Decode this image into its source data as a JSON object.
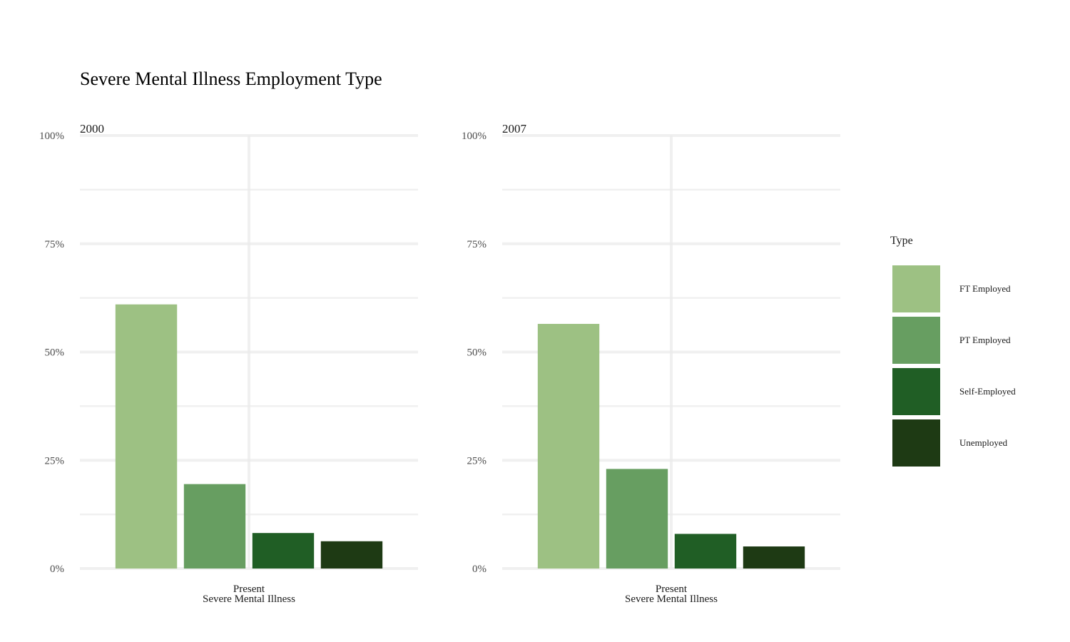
{
  "chart_data": {
    "type": "bar",
    "title": "Severe Mental Illness Employment Type",
    "xlabel": "Severe Mental Illness",
    "ylabel": "",
    "ylim": [
      0,
      1
    ],
    "y_ticks": [
      0,
      0.25,
      0.5,
      0.75,
      1.0
    ],
    "y_tick_labels": [
      "0%",
      "25%",
      "50%",
      "75%",
      "100%"
    ],
    "grid": true,
    "legend": {
      "title": "Type",
      "position": "right",
      "entries": [
        "FT Employed",
        "PT Employed",
        "Self-Employed",
        "Unemployed"
      ]
    },
    "colors": {
      "FT Employed": "#9dc183",
      "PT Employed": "#679e61",
      "Self-Employed": "#205e25",
      "Unemployed": "#1e3a14"
    },
    "panels": [
      {
        "facet": "2000",
        "categories": [
          "Present"
        ],
        "series": [
          {
            "name": "FT Employed",
            "values": [
              0.61
            ]
          },
          {
            "name": "PT Employed",
            "values": [
              0.195
            ]
          },
          {
            "name": "Self-Employed",
            "values": [
              0.082
            ]
          },
          {
            "name": "Unemployed",
            "values": [
              0.063
            ]
          }
        ]
      },
      {
        "facet": "2007",
        "categories": [
          "Present"
        ],
        "series": [
          {
            "name": "FT Employed",
            "values": [
              0.565
            ]
          },
          {
            "name": "PT Employed",
            "values": [
              0.23
            ]
          },
          {
            "name": "Self-Employed",
            "values": [
              0.08
            ]
          },
          {
            "name": "Unemployed",
            "values": [
              0.051
            ]
          }
        ]
      }
    ]
  }
}
